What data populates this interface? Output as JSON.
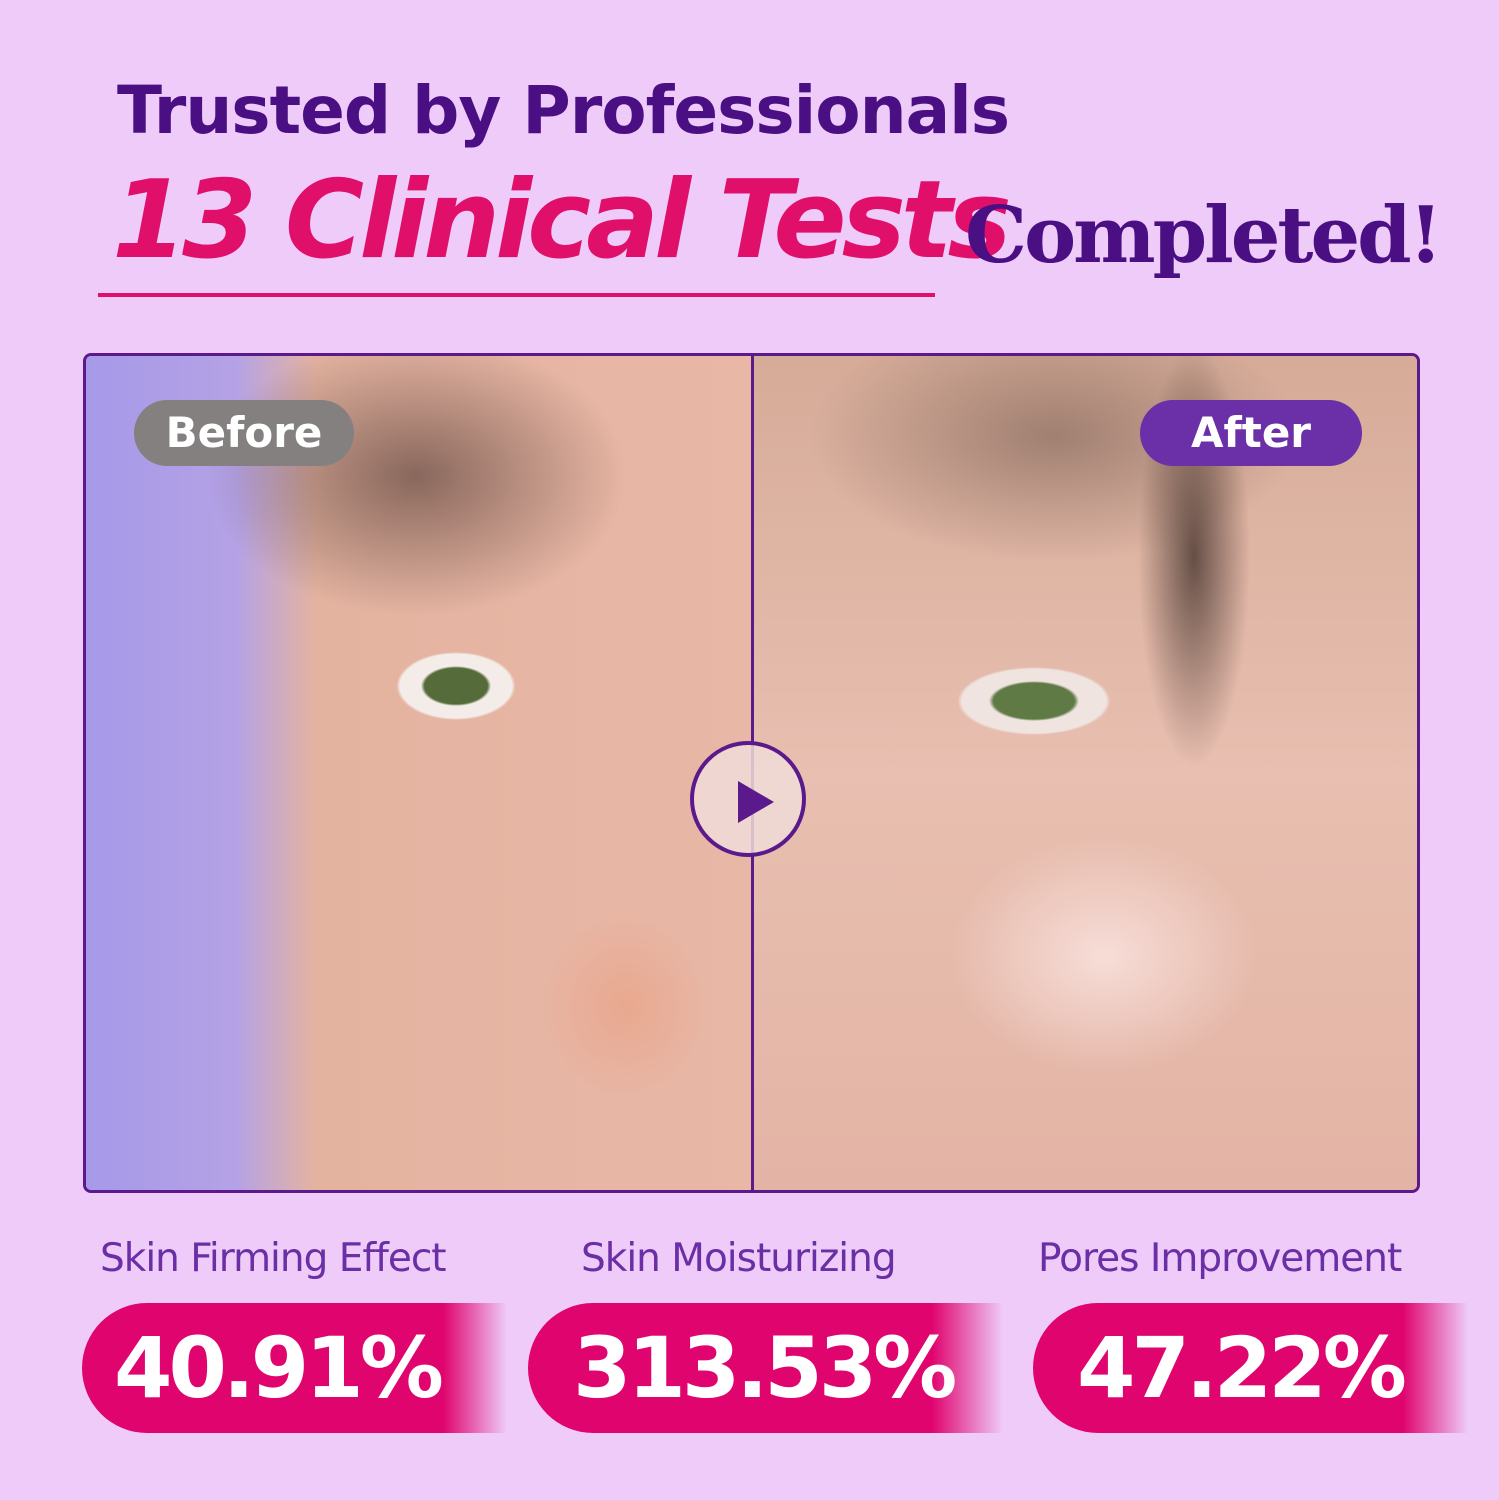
{
  "header": {
    "line1": "Trusted by Professionals",
    "highlight": "13 Clinical Tests",
    "suffix": "Completed!"
  },
  "comparison": {
    "before_label": "Before",
    "after_label": "After",
    "play_icon": "play-icon"
  },
  "stats": [
    {
      "label": "Skin Firming Effect",
      "value": "40.91%"
    },
    {
      "label": "Skin Moisturizing",
      "value": "313.53%"
    },
    {
      "label": "Pores Improvement",
      "value": "47.22%"
    }
  ],
  "colors": {
    "background": "#eecbf9",
    "accent_pink": "#e0106a",
    "accent_purple": "#4a0f82"
  }
}
